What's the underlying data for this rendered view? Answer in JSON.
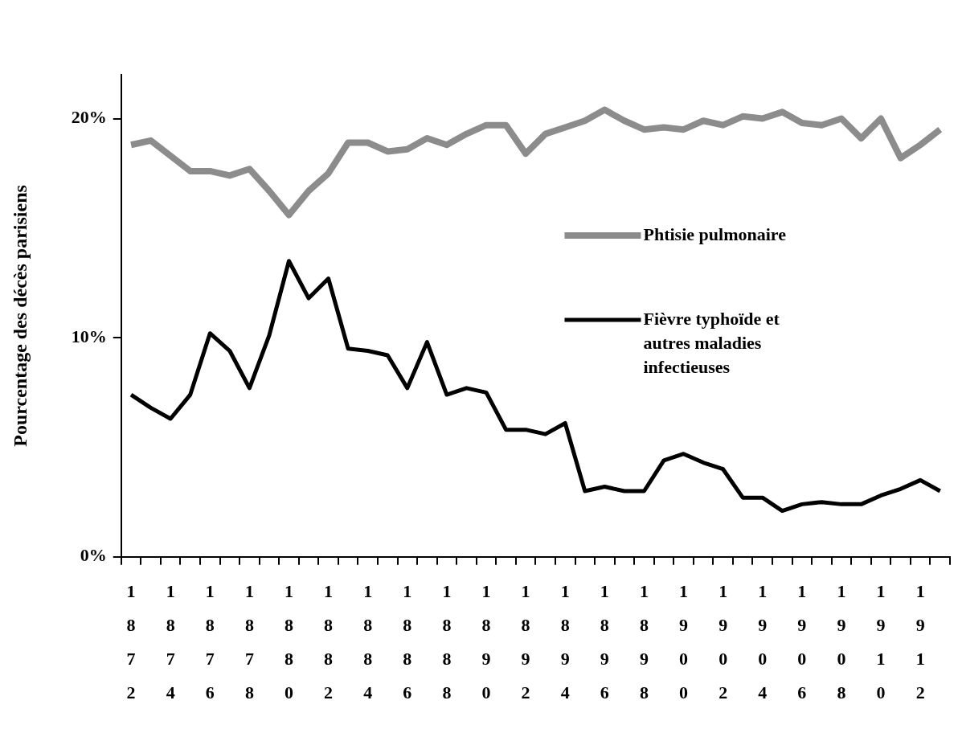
{
  "chart_data": {
    "type": "line",
    "ylabel": "Pourcentage des décès parisiens",
    "categories": [
      "1872",
      null,
      "1874",
      null,
      "1876",
      null,
      "1878",
      null,
      "1880",
      null,
      "1882",
      null,
      "1884",
      null,
      "1886",
      null,
      "1888",
      null,
      "1890",
      null,
      "1892",
      null,
      "1894",
      null,
      "1896",
      null,
      "1898",
      null,
      "1900",
      null,
      "1902",
      null,
      "1904",
      null,
      "1906",
      null,
      "1908",
      null,
      "1910",
      null,
      "1912",
      null
    ],
    "series": [
      {
        "name": "Phtisie pulmonaire",
        "color": "#8c8c8c",
        "values": [
          18.8,
          19.0,
          18.3,
          17.6,
          17.6,
          17.4,
          17.7,
          16.7,
          15.6,
          16.7,
          17.5,
          18.9,
          18.9,
          18.5,
          18.6,
          19.1,
          18.8,
          19.3,
          19.7,
          19.7,
          18.4,
          19.3,
          19.6,
          19.9,
          20.4,
          19.9,
          19.5,
          19.6,
          19.5,
          19.9,
          19.7,
          20.1,
          20.0,
          20.3,
          19.8,
          19.7,
          20.0,
          19.1,
          20.0,
          18.2,
          18.8,
          19.5
        ]
      },
      {
        "name": "Fièvre typhoïde et autres maladies infectieuses",
        "color": "#000000",
        "values": [
          7.4,
          6.8,
          6.3,
          7.4,
          10.2,
          9.4,
          7.7,
          10.1,
          13.5,
          11.8,
          12.7,
          9.5,
          9.4,
          9.2,
          7.7,
          9.8,
          7.4,
          7.7,
          7.5,
          5.8,
          5.8,
          5.6,
          6.1,
          3.0,
          3.2,
          3.0,
          3.0,
          4.4,
          4.7,
          4.3,
          4.0,
          2.7,
          2.7,
          2.1,
          2.4,
          2.5,
          2.4,
          2.4,
          2.8,
          3.1,
          3.5,
          3.0
        ]
      }
    ],
    "ylim": [
      0,
      22
    ],
    "yticks": [
      {
        "value": 0,
        "label": "0%"
      },
      {
        "value": 10,
        "label": "10%"
      },
      {
        "value": 20,
        "label": "20%"
      }
    ],
    "grid": false,
    "legend": "right",
    "marker": "none",
    "line_style": "solid"
  }
}
